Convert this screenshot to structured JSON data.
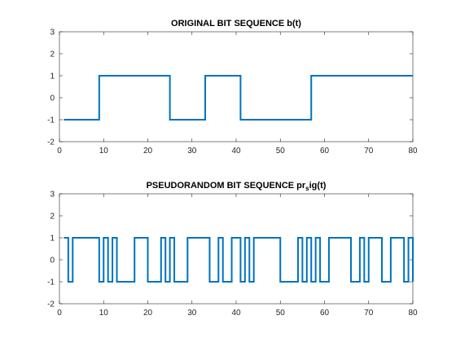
{
  "colors": {
    "series": "#0072BD",
    "axis": "#262626",
    "background": "#ffffff"
  },
  "chart_data": [
    {
      "type": "line",
      "step": true,
      "title": "ORIGINAL BIT SEQUENCE b(t)",
      "xlabel": "",
      "ylabel": "",
      "xlim": [
        0,
        80
      ],
      "ylim": [
        -2,
        3
      ],
      "xticks": [
        0,
        10,
        20,
        30,
        40,
        50,
        60,
        70,
        80
      ],
      "yticks": [
        -2,
        -1,
        0,
        1,
        2,
        3
      ],
      "grid": false,
      "series": [
        {
          "x": [
            1,
            9,
            9,
            25,
            25,
            33,
            33,
            41,
            41,
            57,
            57,
            80
          ],
          "y": [
            -1,
            -1,
            1,
            1,
            -1,
            -1,
            1,
            1,
            -1,
            -1,
            1,
            1
          ]
        }
      ]
    },
    {
      "type": "line",
      "step": true,
      "title_main": "PSEUDORANDOM BIT SEQUENCE pr",
      "title_sub": "s",
      "title_tail": "ig(t)",
      "xlabel": "",
      "ylabel": "",
      "xlim": [
        0,
        80
      ],
      "ylim": [
        -2,
        3
      ],
      "xticks": [
        0,
        10,
        20,
        30,
        40,
        50,
        60,
        70,
        80
      ],
      "yticks": [
        -2,
        -1,
        0,
        1,
        2,
        3
      ],
      "grid": false,
      "series": [
        {
          "levels": [
            1,
            -1,
            1,
            1,
            1,
            1,
            1,
            1,
            -1,
            1,
            -1,
            1,
            -1,
            -1,
            -1,
            -1,
            1,
            1,
            1,
            -1,
            -1,
            -1,
            1,
            -1,
            1,
            -1,
            -1,
            -1,
            1,
            1,
            1,
            1,
            1,
            -1,
            -1,
            1,
            -1,
            -1,
            1,
            1,
            -1,
            1,
            -1,
            1,
            1,
            1,
            1,
            1,
            1,
            -1,
            -1,
            -1,
            -1,
            1,
            -1,
            1,
            -1,
            1,
            -1,
            -1,
            1,
            1,
            1,
            1,
            1,
            -1,
            -1,
            1,
            -1,
            1,
            1,
            1,
            -1,
            -1,
            1,
            1,
            1,
            -1,
            1,
            -1
          ],
          "x_start": 1,
          "x_step": 1,
          "x_end": 80
        }
      ]
    }
  ]
}
